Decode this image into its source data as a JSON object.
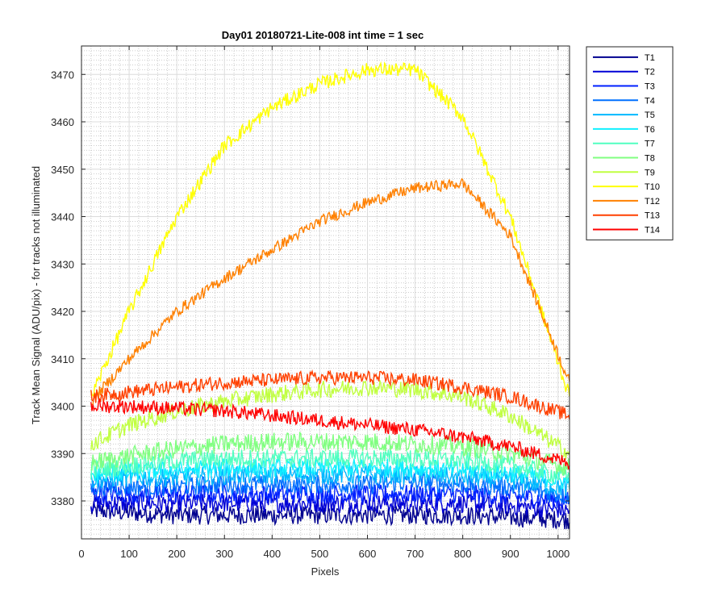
{
  "chart_data": {
    "type": "line",
    "title": "Day01 20180721-Lite-008 int time = 1 sec",
    "xlabel": "Pixels",
    "ylabel": "Track Mean Signal (ADU/pix) - for tracks not illuminated",
    "xlim": [
      0,
      1024
    ],
    "ylim": [
      3372,
      3476
    ],
    "xticks": [
      0,
      100,
      200,
      300,
      400,
      500,
      600,
      700,
      800,
      900,
      1000
    ],
    "yticks": [
      3380,
      3390,
      3400,
      3410,
      3420,
      3430,
      3440,
      3450,
      3460,
      3470
    ],
    "grid": true,
    "minor_grid": true,
    "legend_position": "outside-top-right",
    "x": [
      20,
      100,
      200,
      300,
      400,
      500,
      600,
      700,
      800,
      900,
      1024
    ],
    "series": [
      {
        "name": "T1",
        "color": "#00008f",
        "noise": 2.0,
        "values": [
          3378,
          3377.5,
          3377,
          3377,
          3377,
          3377,
          3377,
          3377,
          3377,
          3376.5,
          3376
        ]
      },
      {
        "name": "T2",
        "color": "#0000d6",
        "noise": 2.0,
        "values": [
          3379.5,
          3379.5,
          3379.5,
          3379.5,
          3379.5,
          3379.5,
          3379.5,
          3379.5,
          3379.5,
          3379,
          3378
        ]
      },
      {
        "name": "T3",
        "color": "#0020ff",
        "noise": 2.0,
        "values": [
          3381.5,
          3381.5,
          3381.5,
          3381.5,
          3381.5,
          3381.5,
          3381.5,
          3381.5,
          3381.5,
          3381,
          3380
        ]
      },
      {
        "name": "T4",
        "color": "#0070ff",
        "noise": 2.0,
        "values": [
          3383,
          3383,
          3383,
          3383.5,
          3383.5,
          3383.5,
          3383.5,
          3384,
          3383.5,
          3383,
          3381
        ]
      },
      {
        "name": "T5",
        "color": "#00b8ff",
        "noise": 2.0,
        "values": [
          3384.5,
          3385,
          3385,
          3385.5,
          3385.5,
          3385.5,
          3385.5,
          3385.5,
          3385,
          3384.5,
          3382.5
        ]
      },
      {
        "name": "T6",
        "color": "#10f0ff",
        "noise": 2.0,
        "values": [
          3385.5,
          3386,
          3386.5,
          3387,
          3387,
          3387,
          3387,
          3387,
          3386.5,
          3386,
          3384
        ]
      },
      {
        "name": "T7",
        "color": "#50ffc0",
        "noise": 2.0,
        "values": [
          3386.5,
          3387.5,
          3388.5,
          3389,
          3389,
          3389,
          3389,
          3389,
          3388.5,
          3387.5,
          3385
        ]
      },
      {
        "name": "T8",
        "color": "#80ff80",
        "noise": 2.0,
        "values": [
          3388,
          3389.5,
          3391,
          3392,
          3392.5,
          3392.5,
          3392.5,
          3392,
          3391.5,
          3390,
          3387
        ]
      },
      {
        "name": "T9",
        "color": "#c0ff40",
        "noise": 1.8,
        "values": [
          3392,
          3396,
          3399,
          3401,
          3402.5,
          3403.5,
          3404,
          3403.5,
          3402,
          3398,
          3390
        ]
      },
      {
        "name": "T10",
        "color": "#ffff00",
        "noise": 1.5,
        "values": [
          3402,
          3420,
          3440,
          3455,
          3463,
          3468,
          3471,
          3471,
          3461,
          3440,
          3402
        ]
      },
      {
        "name": "T12",
        "color": "#ff8000",
        "noise": 1.2,
        "values": [
          3401,
          3410,
          3420,
          3427,
          3433,
          3439,
          3443,
          3446,
          3447,
          3436,
          3405
        ]
      },
      {
        "name": "T13",
        "color": "#ff4000",
        "noise": 1.5,
        "values": [
          3402,
          3403,
          3404,
          3405,
          3405.5,
          3406,
          3406,
          3405.5,
          3404,
          3402,
          3398
        ]
      },
      {
        "name": "T14",
        "color": "#ff0000",
        "noise": 1.5,
        "values": [
          3400,
          3400,
          3399.5,
          3399,
          3398,
          3397,
          3396,
          3395,
          3393.5,
          3391.5,
          3388
        ]
      }
    ]
  }
}
